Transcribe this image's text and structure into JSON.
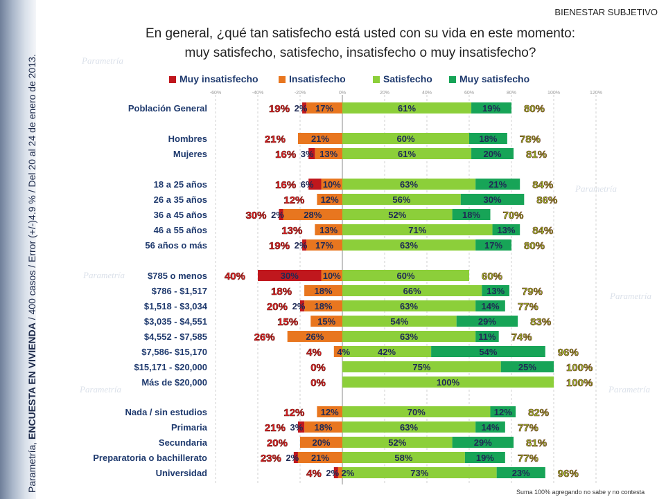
{
  "header": {
    "section_label": "BIENESTAR SUBJETIVO",
    "title_line1": "En general, ¿qué tan satisfecho está usted con su vida en este momento:",
    "title_line2": "muy satisfecho, satisfecho, insatisfecho o muy insatisfecho?"
  },
  "sidebar": {
    "brand": "Parametría, ",
    "survey": "ENCUESTA EN VIVIENDA",
    "details": " / 400 casos / Error (+/-)4.9 % / Del 20 al 24 de enero de 2013."
  },
  "watermark": "Parametría",
  "footnote": "Suma 100% agregando no sabe y no contesta",
  "colors": {
    "muy_insatisfecho": "#c0171d",
    "insatisfecho": "#e8761f",
    "satisfecho": "#8ccf3a",
    "muy_satisfecho": "#17a457",
    "neg_total": "#e81f26",
    "pos_total": "#9ec431"
  },
  "chart_data": {
    "type": "bar",
    "orientation": "horizontal",
    "stacked": true,
    "diverging": true,
    "x_axis": {
      "range": [
        -60,
        120
      ],
      "ticks": [
        "-60%",
        "-40%",
        "-20%",
        "0%",
        "20%",
        "40%",
        "60%",
        "80%",
        "100%",
        "120%"
      ]
    },
    "legend": [
      "Muy insatisfecho",
      "Insatisfecho",
      "Satisfecho",
      "Muy satisfecho"
    ],
    "legend_position": "top",
    "rows": [
      {
        "label": "Población General",
        "mi": 2,
        "mi_label": "2%",
        "in": 17,
        "in_label": "17%",
        "sa": 61,
        "sa_label": "61%",
        "ms": 19,
        "ms_label": "19%",
        "neg_total": "19%",
        "pos_total": "80%"
      },
      {
        "label": "Hombres",
        "mi": 0,
        "mi_label": "",
        "in": 21,
        "in_label": "21%",
        "sa": 60,
        "sa_label": "60%",
        "ms": 18,
        "ms_label": "18%",
        "neg_total": "21%",
        "pos_total": "78%"
      },
      {
        "label": "Mujeres",
        "mi": 3,
        "mi_label": "3%",
        "in": 13,
        "in_label": "13%",
        "sa": 61,
        "sa_label": "61%",
        "ms": 20,
        "ms_label": "20%",
        "neg_total": "16%",
        "pos_total": "81%"
      },
      {
        "label": "18 a 25 años",
        "mi": 6,
        "mi_label": "6%",
        "in": 10,
        "in_label": "10%",
        "sa": 63,
        "sa_label": "63%",
        "ms": 21,
        "ms_label": "21%",
        "neg_total": "16%",
        "pos_total": "84%"
      },
      {
        "label": "26 a 35 años",
        "mi": 0,
        "mi_label": "",
        "in": 12,
        "in_label": "12%",
        "sa": 56,
        "sa_label": "56%",
        "ms": 30,
        "ms_label": "30%",
        "neg_total": "12%",
        "pos_total": "86%"
      },
      {
        "label": "36 a 45 años",
        "mi": 2,
        "mi_label": "2%",
        "in": 28,
        "in_label": "28%",
        "sa": 52,
        "sa_label": "52%",
        "ms": 18,
        "ms_label": "18%",
        "neg_total": "30%",
        "pos_total": "70%"
      },
      {
        "label": "46 a 55 años",
        "mi": 0,
        "mi_label": "",
        "in": 13,
        "in_label": "13%",
        "sa": 71,
        "sa_label": "71%",
        "ms": 13,
        "ms_label": "13%",
        "neg_total": "13%",
        "pos_total": "84%"
      },
      {
        "label": "56 años o más",
        "mi": 2,
        "mi_label": "2%",
        "in": 17,
        "in_label": "17%",
        "sa": 63,
        "sa_label": "63%",
        "ms": 17,
        "ms_label": "17%",
        "neg_total": "19%",
        "pos_total": "80%"
      },
      {
        "label": "$785 o menos",
        "mi": 30,
        "mi_label": "30%",
        "in": 10,
        "in_label": "10%",
        "sa": 60,
        "sa_label": "60%",
        "ms": 0,
        "ms_label": "",
        "neg_total": "40%",
        "pos_total": "60%"
      },
      {
        "label": "$786 - $1,517",
        "mi": 0,
        "mi_label": "",
        "in": 18,
        "in_label": "18%",
        "sa": 66,
        "sa_label": "66%",
        "ms": 13,
        "ms_label": "13%",
        "neg_total": "18%",
        "pos_total": "79%"
      },
      {
        "label": "$1,518 - $3,034",
        "mi": 2,
        "mi_label": "2%",
        "in": 18,
        "in_label": "18%",
        "sa": 63,
        "sa_label": "63%",
        "ms": 14,
        "ms_label": "14%",
        "neg_total": "20%",
        "pos_total": "77%"
      },
      {
        "label": "$3,035 - $4,551",
        "mi": 0,
        "mi_label": "",
        "in": 15,
        "in_label": "15%",
        "sa": 54,
        "sa_label": "54%",
        "ms": 29,
        "ms_label": "29%",
        "neg_total": "15%",
        "pos_total": "83%"
      },
      {
        "label": "$4,552 - $7,585",
        "mi": 0,
        "mi_label": "",
        "in": 26,
        "in_label": "26%",
        "sa": 63,
        "sa_label": "63%",
        "ms": 11,
        "ms_label": "11%",
        "neg_total": "26%",
        "pos_total": "74%"
      },
      {
        "label": "$7,586- $15,170",
        "mi": 0,
        "mi_label": "",
        "in": 4,
        "in_label": "4%",
        "sa": 42,
        "sa_label": "42%",
        "ms": 54,
        "ms_label": "54%",
        "neg_total": "4%",
        "pos_total": "96%"
      },
      {
        "label": "$15,171 - $20,000",
        "mi": 0,
        "mi_label": "",
        "in": 0,
        "in_label": "",
        "sa": 75,
        "sa_label": "75%",
        "ms": 25,
        "ms_label": "25%",
        "neg_total": "0%",
        "pos_total": "100%"
      },
      {
        "label": "Más de $20,000",
        "mi": 0,
        "mi_label": "",
        "in": 0,
        "in_label": "",
        "sa": 100,
        "sa_label": "100%",
        "ms": 0,
        "ms_label": "",
        "neg_total": "0%",
        "pos_total": "100%"
      },
      {
        "label": "Nada / sin estudios",
        "mi": 0,
        "mi_label": "",
        "in": 12,
        "in_label": "12%",
        "sa": 70,
        "sa_label": "70%",
        "ms": 12,
        "ms_label": "12%",
        "neg_total": "12%",
        "pos_total": "82%"
      },
      {
        "label": "Primaria",
        "mi": 3,
        "mi_label": "3%",
        "in": 18,
        "in_label": "18%",
        "sa": 63,
        "sa_label": "63%",
        "ms": 14,
        "ms_label": "14%",
        "neg_total": "21%",
        "pos_total": "77%"
      },
      {
        "label": "Secundaria",
        "mi": 0,
        "mi_label": "",
        "in": 20,
        "in_label": "20%",
        "sa": 52,
        "sa_label": "52%",
        "ms": 29,
        "ms_label": "29%",
        "neg_total": "20%",
        "pos_total": "81%"
      },
      {
        "label": "Preparatoria o bachillerato",
        "mi": 2,
        "mi_label": "2%",
        "in": 21,
        "in_label": "21%",
        "sa": 58,
        "sa_label": "58%",
        "ms": 19,
        "ms_label": "19%",
        "neg_total": "23%",
        "pos_total": "77%"
      },
      {
        "label": "Universidad",
        "mi": 2,
        "mi_label": "2%",
        "in": 2,
        "in_label": "2%",
        "sa": 73,
        "sa_label": "73%",
        "ms": 23,
        "ms_label": "23%",
        "neg_total": "4%",
        "pos_total": "96%"
      }
    ]
  }
}
